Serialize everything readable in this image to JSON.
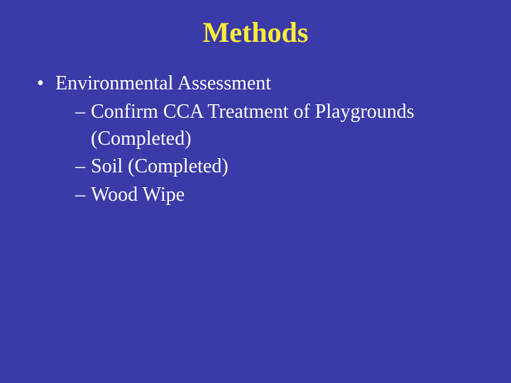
{
  "colors": {
    "background": "#3a3aa8",
    "title": "#fced3a",
    "body_text": "#ffffff"
  },
  "typography": {
    "font_family": "Times New Roman",
    "title_fontsize": 40,
    "title_weight": "bold",
    "body_fontsize": 28
  },
  "slide": {
    "title": "Methods",
    "bullets": [
      {
        "text": "Environmental Assessment",
        "children": [
          {
            "text": "Confirm CCA Treatment of Playgrounds (Completed)"
          },
          {
            "text": "Soil (Completed)"
          },
          {
            "text": "Wood Wipe"
          }
        ]
      }
    ]
  }
}
